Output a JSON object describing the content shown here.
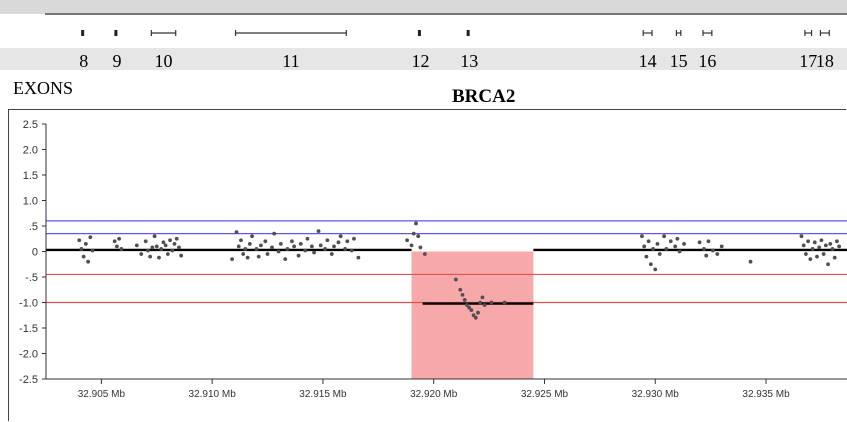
{
  "gene": "BRCA2",
  "exon_track_title": "EXONS",
  "exons": [
    {
      "label": "8",
      "start": 32.9042,
      "end": 32.9043
    },
    {
      "label": "9",
      "start": 32.9057,
      "end": 32.9058
    },
    {
      "label": "10",
      "start": 32.9073,
      "end": 32.9084
    },
    {
      "label": "11",
      "start": 32.9111,
      "end": 32.9161
    },
    {
      "label": "12",
      "start": 32.9194,
      "end": 32.9195
    },
    {
      "label": "13",
      "start": 32.9216,
      "end": 32.9217
    },
    {
      "label": "14",
      "start": 32.9295,
      "end": 32.9299
    },
    {
      "label": "15",
      "start": 32.931,
      "end": 32.9312
    },
    {
      "label": "16",
      "start": 32.9322,
      "end": 32.9326
    },
    {
      "label": "17",
      "start": 32.9368,
      "end": 32.9371
    },
    {
      "label": "18",
      "start": 32.9375,
      "end": 32.9379
    }
  ],
  "chart_data": {
    "type": "scatter",
    "xlim": [
      32.9025,
      32.9387
    ],
    "ylim": [
      -2.5,
      2.5
    ],
    "x_unit": "Mb",
    "x_ticks": [
      32.905,
      32.91,
      32.915,
      32.92,
      32.925,
      32.93,
      32.935
    ],
    "x_tick_labels": [
      "32.905 Mb",
      "32.910 Mb",
      "32.915 Mb",
      "32.920 Mb",
      "32.925 Mb",
      "32.930 Mb",
      "32.935 Mb"
    ],
    "y_ticks": [
      2.5,
      2.0,
      1.5,
      1.0,
      0.5,
      0,
      -0.5,
      -1.0,
      -1.5,
      -2.0,
      -2.5
    ],
    "y_tick_labels": [
      "2.5",
      "2.0",
      "1.5",
      "1.0",
      ".5",
      "0",
      "-.5",
      "-1.0",
      "-1.5",
      "-2.0",
      "-2.5"
    ],
    "reference_lines": [
      {
        "y": 0.6,
        "color": "#5a5af0"
      },
      {
        "y": 0.35,
        "color": "#5a5af0"
      },
      {
        "y": -0.45,
        "color": "#e85050"
      },
      {
        "y": -1.0,
        "color": "#e85050"
      }
    ],
    "highlight_region": {
      "x": [
        32.919,
        32.9245
      ],
      "y": [
        -2.5,
        0
      ],
      "color": "#f7a9a9"
    },
    "segments": [
      {
        "x": [
          32.9025,
          32.919
        ],
        "y": 0.03,
        "color": "#000000"
      },
      {
        "x": [
          32.9195,
          32.9245
        ],
        "y": -1.02,
        "color": "#000000"
      },
      {
        "x": [
          32.9245,
          32.9387
        ],
        "y": 0.03,
        "color": "#000000"
      }
    ],
    "points": [
      [
        32.904,
        0.22
      ],
      [
        32.9041,
        0.05
      ],
      [
        32.9042,
        -0.1
      ],
      [
        32.9043,
        0.15
      ],
      [
        32.9044,
        -0.2
      ],
      [
        32.9045,
        0.28
      ],
      [
        32.9046,
        0.02
      ],
      [
        32.9056,
        0.2
      ],
      [
        32.9057,
        0.1
      ],
      [
        32.9058,
        0.25
      ],
      [
        32.9059,
        0.05
      ],
      [
        32.9066,
        0.12
      ],
      [
        32.9068,
        -0.05
      ],
      [
        32.907,
        0.2
      ],
      [
        32.9071,
        0.02
      ],
      [
        32.9072,
        -0.1
      ],
      [
        32.9073,
        0.08
      ],
      [
        32.9074,
        0.3
      ],
      [
        32.9075,
        0.1
      ],
      [
        32.9076,
        -0.12
      ],
      [
        32.9077,
        0.05
      ],
      [
        32.9078,
        0.18
      ],
      [
        32.9079,
        0.12
      ],
      [
        32.908,
        -0.05
      ],
      [
        32.9081,
        0.22
      ],
      [
        32.9082,
        0.02
      ],
      [
        32.9083,
        0.15
      ],
      [
        32.9084,
        0.25
      ],
      [
        32.9085,
        0.08
      ],
      [
        32.9086,
        -0.08
      ],
      [
        32.9109,
        -0.15
      ],
      [
        32.9111,
        0.38
      ],
      [
        32.9112,
        0.1
      ],
      [
        32.9113,
        0.22
      ],
      [
        32.9114,
        -0.05
      ],
      [
        32.9115,
        0.05
      ],
      [
        32.9116,
        -0.12
      ],
      [
        32.9117,
        0.15
      ],
      [
        32.9118,
        0.3
      ],
      [
        32.912,
        0.05
      ],
      [
        32.9121,
        -0.1
      ],
      [
        32.9122,
        0.12
      ],
      [
        32.9124,
        0.2
      ],
      [
        32.9125,
        -0.05
      ],
      [
        32.9127,
        0.08
      ],
      [
        32.9128,
        0.35
      ],
      [
        32.913,
        0.0
      ],
      [
        32.9131,
        0.15
      ],
      [
        32.9133,
        -0.15
      ],
      [
        32.9134,
        0.05
      ],
      [
        32.9136,
        0.2
      ],
      [
        32.9137,
        0.1
      ],
      [
        32.9139,
        -0.08
      ],
      [
        32.914,
        0.15
      ],
      [
        32.9142,
        0.02
      ],
      [
        32.9143,
        0.25
      ],
      [
        32.9145,
        0.1
      ],
      [
        32.9146,
        -0.02
      ],
      [
        32.9148,
        0.4
      ],
      [
        32.9149,
        0.12
      ],
      [
        32.9151,
        0.05
      ],
      [
        32.9152,
        0.22
      ],
      [
        32.9154,
        -0.05
      ],
      [
        32.9155,
        0.1
      ],
      [
        32.9157,
        0.18
      ],
      [
        32.9158,
        0.3
      ],
      [
        32.916,
        0.05
      ],
      [
        32.9161,
        0.2
      ],
      [
        32.9163,
        0.02
      ],
      [
        32.9164,
        0.25
      ],
      [
        32.9166,
        -0.12
      ],
      [
        32.9188,
        0.22
      ],
      [
        32.919,
        0.12
      ],
      [
        32.9191,
        0.35
      ],
      [
        32.9192,
        0.55
      ],
      [
        32.9193,
        0.3
      ],
      [
        32.9194,
        0.08
      ],
      [
        32.9196,
        -0.05
      ],
      [
        32.921,
        -0.55
      ],
      [
        32.9212,
        -0.75
      ],
      [
        32.9213,
        -0.85
      ],
      [
        32.9214,
        -0.95
      ],
      [
        32.9215,
        -1.05
      ],
      [
        32.9216,
        -1.1
      ],
      [
        32.9217,
        -1.15
      ],
      [
        32.9218,
        -1.25
      ],
      [
        32.9219,
        -1.3
      ],
      [
        32.922,
        -1.2
      ],
      [
        32.9221,
        -1.0
      ],
      [
        32.9222,
        -0.9
      ],
      [
        32.9223,
        -1.05
      ],
      [
        32.9226,
        -1.0
      ],
      [
        32.9232,
        -1.0
      ],
      [
        32.9294,
        0.3
      ],
      [
        32.9295,
        0.1
      ],
      [
        32.9296,
        -0.1
      ],
      [
        32.9297,
        0.2
      ],
      [
        32.9298,
        -0.25
      ],
      [
        32.9299,
        0.05
      ],
      [
        32.93,
        -0.35
      ],
      [
        32.9301,
        0.15
      ],
      [
        32.9302,
        -0.05
      ],
      [
        32.9304,
        0.3
      ],
      [
        32.9305,
        0.05
      ],
      [
        32.9307,
        0.2
      ],
      [
        32.9309,
        0.1
      ],
      [
        32.931,
        0.25
      ],
      [
        32.9311,
        0.0
      ],
      [
        32.9313,
        0.15
      ],
      [
        32.932,
        0.18
      ],
      [
        32.9322,
        0.05
      ],
      [
        32.9323,
        -0.08
      ],
      [
        32.9324,
        0.2
      ],
      [
        32.9326,
        0.02
      ],
      [
        32.9328,
        -0.05
      ],
      [
        32.933,
        0.1
      ],
      [
        32.9343,
        -0.2
      ],
      [
        32.9366,
        0.3
      ],
      [
        32.9367,
        0.12
      ],
      [
        32.9368,
        -0.05
      ],
      [
        32.9369,
        0.2
      ],
      [
        32.937,
        -0.15
      ],
      [
        32.9371,
        0.05
      ],
      [
        32.9372,
        0.18
      ],
      [
        32.9373,
        -0.1
      ],
      [
        32.9374,
        0.08
      ],
      [
        32.9375,
        0.22
      ],
      [
        32.9376,
        -0.05
      ],
      [
        32.9377,
        0.12
      ],
      [
        32.9378,
        -0.25
      ],
      [
        32.9379,
        0.15
      ],
      [
        32.938,
        0.05
      ],
      [
        32.9381,
        -0.12
      ],
      [
        32.9382,
        0.2
      ],
      [
        32.9383,
        0.1
      ]
    ]
  }
}
